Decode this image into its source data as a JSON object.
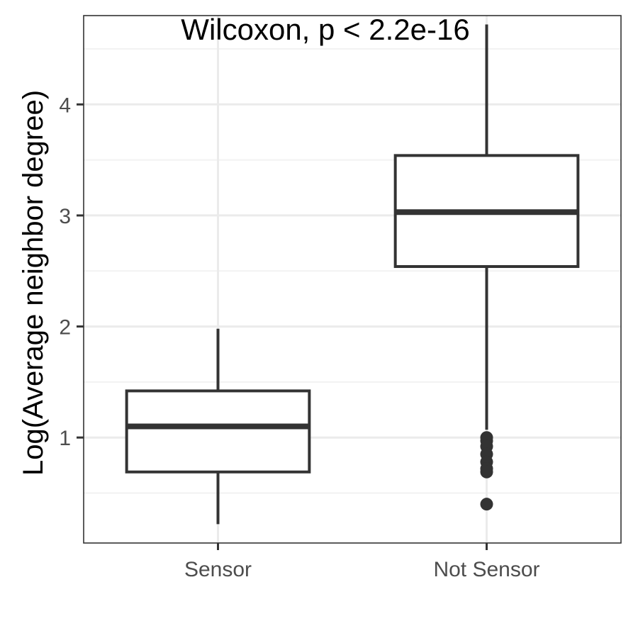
{
  "chart_data": {
    "type": "box",
    "title": "",
    "annotation": "Wilcoxon, p < 2.2e-16",
    "xlabel": "",
    "ylabel": "Log(Average neighbor degree)",
    "categories": [
      "Sensor",
      "Not Sensor"
    ],
    "ylim": [
      0.05,
      4.8
    ],
    "yticks": [
      1,
      2,
      3,
      4
    ],
    "grid": true,
    "boxes": [
      {
        "category": "Sensor",
        "whisker_low": 0.22,
        "q1": 0.69,
        "median": 1.1,
        "q3": 1.42,
        "whisker_high": 1.98,
        "outliers": []
      },
      {
        "category": "Not Sensor",
        "whisker_low": 1.07,
        "q1": 2.54,
        "median": 3.03,
        "q3": 3.54,
        "whisker_high": 4.72,
        "outliers": [
          1.0,
          0.97,
          0.92,
          0.85,
          0.78,
          0.72,
          0.69,
          0.4
        ]
      }
    ],
    "colors": {
      "box_stroke": "#333333",
      "box_fill": "#ffffff",
      "grid_major": "#ebebeb",
      "grid_minor": "#f2f2f2",
      "panel_border": "#333333",
      "tick_label": "#4d4d4d",
      "text": "#000000"
    }
  }
}
